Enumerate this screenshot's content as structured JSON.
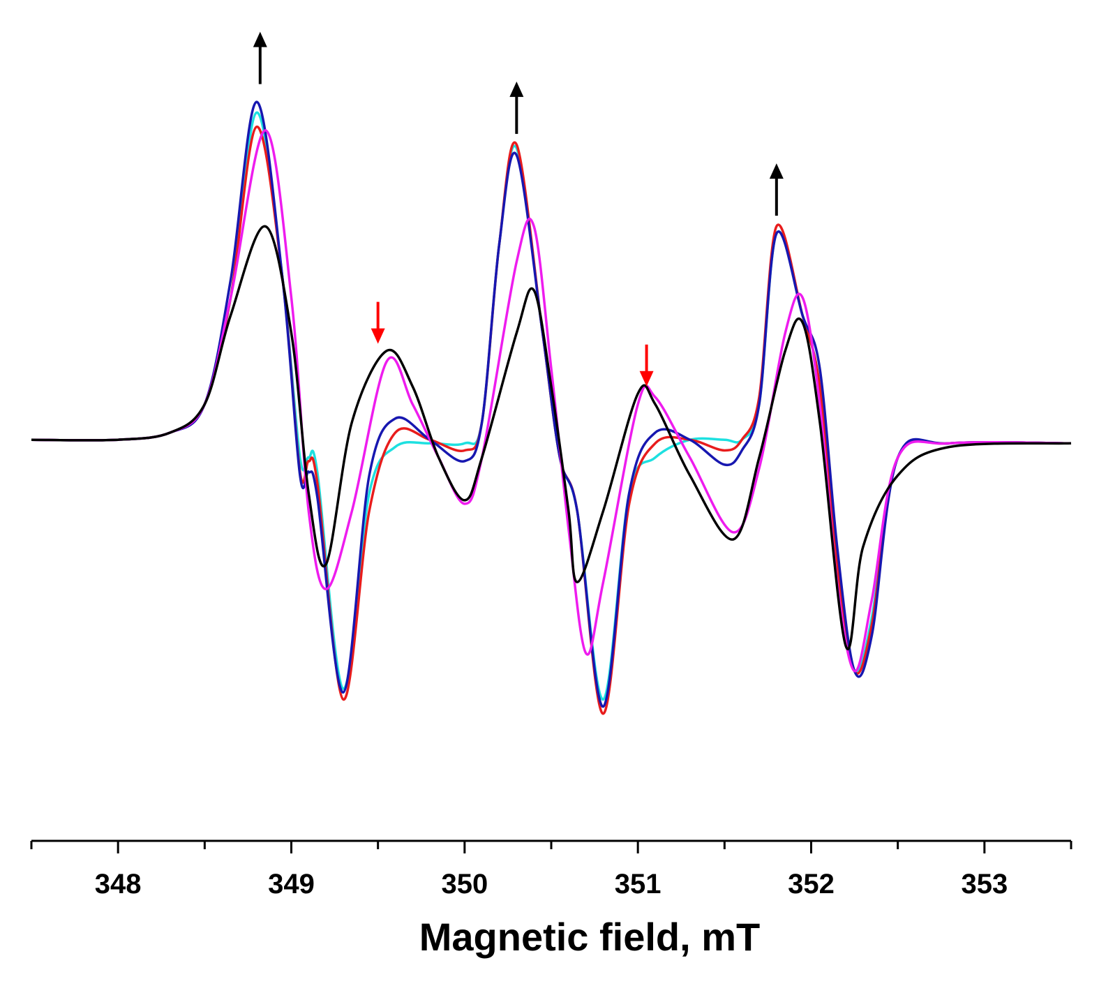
{
  "chart_data": {
    "type": "line",
    "title": "",
    "xlabel": "Magnetic field, mT",
    "ylabel": "",
    "xlim": [
      347.5,
      353.5
    ],
    "ylim": [
      -1.0,
      1.05
    ],
    "grid": false,
    "legend": "none",
    "x_ticks": [
      "348",
      "349",
      "350",
      "351",
      "352",
      "353"
    ],
    "x_tick_values": [
      348,
      349,
      350,
      351,
      352,
      353
    ],
    "series": [
      {
        "color": "#1de0e0",
        "points": [
          [
            347.5,
            0.0
          ],
          [
            348.0,
            0.0
          ],
          [
            348.3,
            0.02
          ],
          [
            348.5,
            0.1
          ],
          [
            348.65,
            0.4
          ],
          [
            348.8,
            0.92
          ],
          [
            348.95,
            0.45
          ],
          [
            349.05,
            -0.05
          ],
          [
            349.1,
            -0.05
          ],
          [
            349.15,
            -0.09
          ],
          [
            349.3,
            -0.7
          ],
          [
            349.45,
            -0.15
          ],
          [
            349.6,
            -0.02
          ],
          [
            349.8,
            -0.01
          ],
          [
            350.0,
            -0.01
          ],
          [
            350.1,
            0.05
          ],
          [
            350.2,
            0.55
          ],
          [
            350.3,
            0.82
          ],
          [
            350.45,
            0.3
          ],
          [
            350.55,
            -0.05
          ],
          [
            350.65,
            -0.2
          ],
          [
            350.8,
            -0.73
          ],
          [
            350.95,
            -0.15
          ],
          [
            351.1,
            -0.05
          ],
          [
            351.3,
            0.0
          ],
          [
            351.5,
            0.0
          ],
          [
            351.6,
            0.0
          ],
          [
            351.7,
            0.1
          ],
          [
            351.8,
            0.58
          ],
          [
            351.95,
            0.35
          ],
          [
            352.05,
            0.15
          ],
          [
            352.15,
            -0.35
          ],
          [
            352.25,
            -0.65
          ],
          [
            352.35,
            -0.5
          ],
          [
            352.5,
            -0.05
          ],
          [
            352.8,
            -0.01
          ],
          [
            353.5,
            -0.01
          ]
        ]
      },
      {
        "color": "#e81c1c",
        "points": [
          [
            347.5,
            0.0
          ],
          [
            348.0,
            0.0
          ],
          [
            348.3,
            0.02
          ],
          [
            348.5,
            0.1
          ],
          [
            348.65,
            0.4
          ],
          [
            348.8,
            0.88
          ],
          [
            348.95,
            0.45
          ],
          [
            349.05,
            -0.09
          ],
          [
            349.1,
            -0.06
          ],
          [
            349.15,
            -0.12
          ],
          [
            349.3,
            -0.73
          ],
          [
            349.45,
            -0.2
          ],
          [
            349.6,
            0.02
          ],
          [
            349.8,
            0.0
          ],
          [
            350.0,
            -0.03
          ],
          [
            350.1,
            0.05
          ],
          [
            350.2,
            0.55
          ],
          [
            350.3,
            0.83
          ],
          [
            350.45,
            0.3
          ],
          [
            350.55,
            -0.05
          ],
          [
            350.65,
            -0.2
          ],
          [
            350.8,
            -0.77
          ],
          [
            350.95,
            -0.18
          ],
          [
            351.1,
            -0.01
          ],
          [
            351.3,
            0.0
          ],
          [
            351.5,
            -0.03
          ],
          [
            351.6,
            0.0
          ],
          [
            351.7,
            0.12
          ],
          [
            351.8,
            0.6
          ],
          [
            351.95,
            0.35
          ],
          [
            352.05,
            0.15
          ],
          [
            352.15,
            -0.35
          ],
          [
            352.25,
            -0.65
          ],
          [
            352.35,
            -0.52
          ],
          [
            352.5,
            -0.05
          ],
          [
            352.8,
            -0.01
          ],
          [
            353.5,
            -0.01
          ]
        ]
      },
      {
        "color": "#1717b0",
        "points": [
          [
            347.5,
            0.0
          ],
          [
            348.0,
            0.0
          ],
          [
            348.3,
            0.02
          ],
          [
            348.5,
            0.1
          ],
          [
            348.65,
            0.45
          ],
          [
            348.8,
            0.95
          ],
          [
            348.95,
            0.45
          ],
          [
            349.05,
            -0.1
          ],
          [
            349.1,
            -0.09
          ],
          [
            349.15,
            -0.16
          ],
          [
            349.3,
            -0.71
          ],
          [
            349.45,
            -0.1
          ],
          [
            349.6,
            0.06
          ],
          [
            349.8,
            0.0
          ],
          [
            350.0,
            -0.06
          ],
          [
            350.1,
            0.05
          ],
          [
            350.2,
            0.55
          ],
          [
            350.3,
            0.8
          ],
          [
            350.45,
            0.3
          ],
          [
            350.55,
            -0.05
          ],
          [
            350.65,
            -0.2
          ],
          [
            350.8,
            -0.75
          ],
          [
            350.95,
            -0.15
          ],
          [
            351.1,
            0.02
          ],
          [
            351.3,
            0.0
          ],
          [
            351.5,
            -0.07
          ],
          [
            351.6,
            -0.03
          ],
          [
            351.7,
            0.1
          ],
          [
            351.8,
            0.58
          ],
          [
            351.95,
            0.35
          ],
          [
            352.05,
            0.2
          ],
          [
            352.15,
            -0.3
          ],
          [
            352.25,
            -0.65
          ],
          [
            352.35,
            -0.55
          ],
          [
            352.5,
            -0.05
          ],
          [
            352.8,
            -0.01
          ],
          [
            353.5,
            -0.01
          ]
        ]
      },
      {
        "color": "#ee1cee",
        "points": [
          [
            347.5,
            0.0
          ],
          [
            348.0,
            0.0
          ],
          [
            348.3,
            0.02
          ],
          [
            348.5,
            0.1
          ],
          [
            348.65,
            0.4
          ],
          [
            348.85,
            0.87
          ],
          [
            349.0,
            0.4
          ],
          [
            349.1,
            -0.2
          ],
          [
            349.2,
            -0.42
          ],
          [
            349.35,
            -0.2
          ],
          [
            349.55,
            0.22
          ],
          [
            349.7,
            0.1
          ],
          [
            349.85,
            -0.05
          ],
          [
            350.0,
            -0.18
          ],
          [
            350.1,
            -0.05
          ],
          [
            350.3,
            0.5
          ],
          [
            350.4,
            0.6
          ],
          [
            350.5,
            0.2
          ],
          [
            350.6,
            -0.25
          ],
          [
            350.7,
            -0.6
          ],
          [
            350.8,
            -0.4
          ],
          [
            351.0,
            0.1
          ],
          [
            351.1,
            0.12
          ],
          [
            351.3,
            -0.05
          ],
          [
            351.55,
            -0.26
          ],
          [
            351.7,
            -0.08
          ],
          [
            351.85,
            0.3
          ],
          [
            351.95,
            0.4
          ],
          [
            352.05,
            0.1
          ],
          [
            352.15,
            -0.4
          ],
          [
            352.25,
            -0.65
          ],
          [
            352.35,
            -0.45
          ],
          [
            352.5,
            -0.05
          ],
          [
            352.8,
            -0.01
          ],
          [
            353.5,
            -0.01
          ]
        ]
      },
      {
        "color": "#000000",
        "points": [
          [
            347.5,
            0.0
          ],
          [
            348.0,
            0.0
          ],
          [
            348.3,
            0.02
          ],
          [
            348.5,
            0.1
          ],
          [
            348.65,
            0.35
          ],
          [
            348.85,
            0.6
          ],
          [
            349.0,
            0.3
          ],
          [
            349.1,
            -0.15
          ],
          [
            349.2,
            -0.35
          ],
          [
            349.35,
            0.05
          ],
          [
            349.55,
            0.25
          ],
          [
            349.7,
            0.15
          ],
          [
            349.85,
            -0.05
          ],
          [
            350.0,
            -0.17
          ],
          [
            350.1,
            -0.05
          ],
          [
            350.3,
            0.3
          ],
          [
            350.4,
            0.42
          ],
          [
            350.5,
            0.15
          ],
          [
            350.6,
            -0.2
          ],
          [
            350.65,
            -0.4
          ],
          [
            350.8,
            -0.2
          ],
          [
            351.0,
            0.13
          ],
          [
            351.1,
            0.1
          ],
          [
            351.3,
            -0.1
          ],
          [
            351.55,
            -0.28
          ],
          [
            351.7,
            -0.05
          ],
          [
            351.85,
            0.25
          ],
          [
            351.95,
            0.33
          ],
          [
            352.05,
            0.05
          ],
          [
            352.2,
            -0.58
          ],
          [
            352.3,
            -0.3
          ],
          [
            352.5,
            -0.1
          ],
          [
            352.8,
            -0.02
          ],
          [
            353.5,
            -0.01
          ]
        ]
      }
    ],
    "annotations": [
      {
        "type": "arrow-up",
        "color": "#000000",
        "x": 348.82,
        "y": 1.0
      },
      {
        "type": "arrow-up",
        "color": "#000000",
        "x": 350.3,
        "y": 0.86
      },
      {
        "type": "arrow-up",
        "color": "#000000",
        "x": 351.8,
        "y": 0.63
      },
      {
        "type": "arrow-down",
        "color": "#ff0000",
        "x": 349.5,
        "y": 0.27
      },
      {
        "type": "arrow-down",
        "color": "#ff0000",
        "x": 351.05,
        "y": 0.15
      }
    ]
  }
}
